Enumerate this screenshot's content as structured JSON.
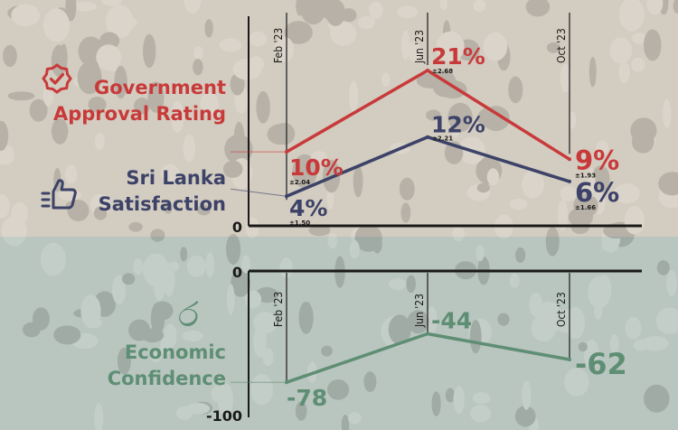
{
  "colors": {
    "top_bg": "#d3ccc0",
    "bottom_bg": "#b9c5bf",
    "government": "#c83a3a",
    "satisfaction": "#3c4268",
    "economic": "#5e8e73",
    "axis": "#1a1a1a"
  },
  "legend": {
    "government": {
      "line1": "Government",
      "line2": "Approval Rating",
      "icon": "verified-badge-icon"
    },
    "satisfaction": {
      "line1": "Sri Lanka",
      "line2": "Satisfaction",
      "icon": "thumbs-up-icon"
    },
    "economic": {
      "line1": "Economic",
      "line2": "Confidence",
      "icon": "rupee-symbol-icon",
      "glyph": "ර"
    }
  },
  "chart_data": [
    {
      "type": "line",
      "categories": [
        "Feb '23",
        "Jun '23",
        "Oct '23"
      ],
      "ylim": [
        0,
        21
      ],
      "y_tick_labels": [
        "0"
      ],
      "series": [
        {
          "name": "Government Approval Rating",
          "values": [
            10,
            21,
            9
          ],
          "labels": [
            "10%",
            "21%",
            "9%"
          ],
          "margins": [
            "±2.04",
            "±2.68",
            "±1.93"
          ]
        },
        {
          "name": "Sri Lanka Satisfaction",
          "values": [
            4,
            12,
            6
          ],
          "labels": [
            "4%",
            "12%",
            "6%"
          ],
          "margins": [
            "±1.50",
            "±2.21",
            "±1.66"
          ]
        }
      ]
    },
    {
      "type": "line",
      "categories": [
        "Feb '23",
        "Jun '23",
        "Oct '23"
      ],
      "ylim": [
        -100,
        0
      ],
      "y_tick_labels": [
        "0",
        "-100"
      ],
      "series": [
        {
          "name": "Economic Confidence",
          "values": [
            -78,
            -44,
            -62
          ],
          "labels": [
            "-78",
            "-44",
            "-62"
          ]
        }
      ]
    }
  ]
}
